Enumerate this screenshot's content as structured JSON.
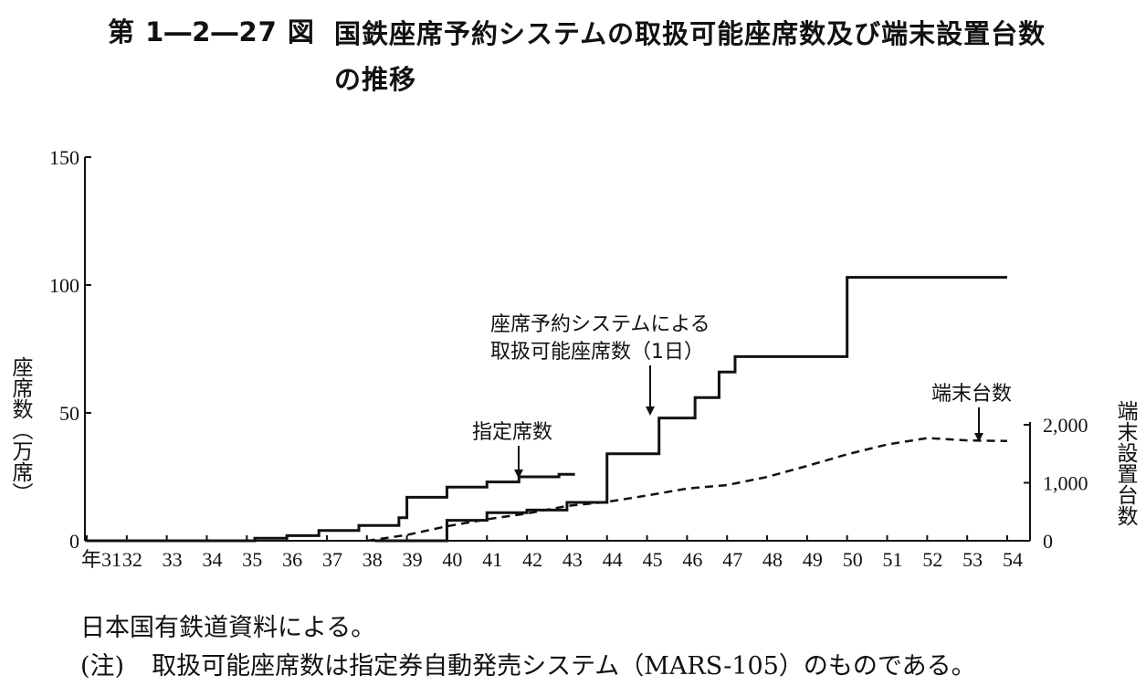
{
  "figure": {
    "number": "第 1―2―27 図",
    "title": "国鉄座席予約システムの取扱可能座席数及び端末設置台数の推移"
  },
  "source": "日本国有鉄道資料による。",
  "note": {
    "label": "(注)",
    "text": "取扱可能座席数は指定券自動発売システム（MARS-105）のものである。"
  },
  "chart_data": {
    "type": "line",
    "xlabel": "年",
    "x_start_label": "年31",
    "categories": [
      "31",
      "32",
      "33",
      "34",
      "35",
      "36",
      "37",
      "38",
      "39",
      "40",
      "41",
      "42",
      "43",
      "44",
      "45",
      "46",
      "47",
      "48",
      "49",
      "50",
      "51",
      "52",
      "53",
      "54"
    ],
    "y_left": {
      "label": "座席数（万席）",
      "ticks": [
        0,
        50,
        100,
        150
      ],
      "ylim": [
        0,
        150
      ]
    },
    "y_right": {
      "label": "端末設置台数",
      "ticks": [
        "0",
        "1,000",
        "2,000"
      ],
      "tick_values": [
        0,
        1000,
        2000
      ],
      "ylim": [
        0,
        2000
      ]
    },
    "series": [
      {
        "name": "指定席数",
        "axis": "left",
        "style": "step-solid",
        "x": [
          31,
          34.8,
          35.2,
          36,
          36.8,
          37.8,
          38.8,
          39,
          40,
          41,
          41.8,
          42.8,
          43.2
        ],
        "values": [
          0,
          0,
          1,
          2,
          4,
          6,
          9,
          17,
          21,
          23,
          25,
          26,
          26
        ]
      },
      {
        "name": "座席予約システムによる取扱可能座席数（1日）",
        "axis": "left",
        "style": "step-solid",
        "x": [
          38.2,
          39.8,
          40,
          41,
          42,
          43,
          44,
          44.7,
          45.3,
          46.2,
          46.8,
          47.2,
          49.3,
          50,
          54
        ],
        "values": [
          0,
          0,
          8,
          11,
          12,
          15,
          34,
          34,
          48,
          56,
          66,
          72,
          72,
          103,
          103
        ]
      },
      {
        "name": "端末台数",
        "axis": "right",
        "style": "dashed",
        "x": [
          38,
          39,
          40,
          41,
          42,
          43,
          44,
          45,
          46,
          47,
          48,
          49,
          50,
          51,
          52,
          53,
          54
        ],
        "values": [
          0,
          100,
          250,
          370,
          470,
          600,
          670,
          780,
          900,
          960,
          1100,
          1290,
          1490,
          1660,
          1770,
          1730,
          1720
        ]
      }
    ],
    "annotations": [
      {
        "text": "指定席数",
        "target": "指定席数"
      },
      {
        "text": "座席予約システムによる",
        "text2": "取扱可能座席数（1日）",
        "target": "座席予約システムによる取扱可能座席数（1日）"
      },
      {
        "text": "端末台数",
        "target": "端末台数"
      }
    ],
    "grid": false
  }
}
